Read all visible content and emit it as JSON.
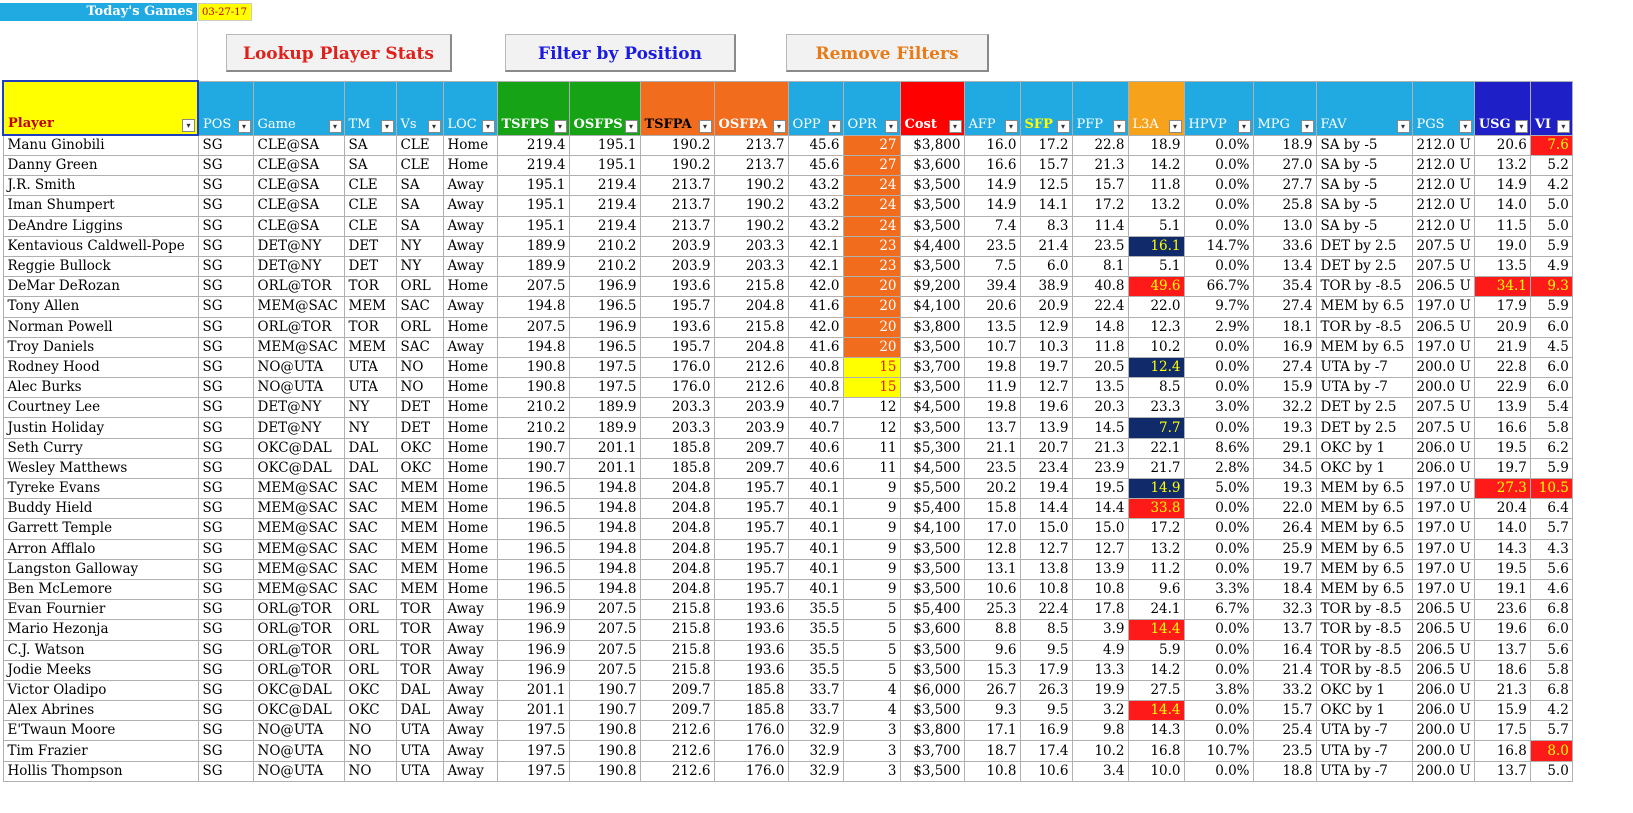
{
  "header": {
    "todays_games_label": "Today's Games",
    "date": "03-27-17"
  },
  "buttons": {
    "lookup": "Lookup Player Stats",
    "filter": "Filter by Position",
    "remove": "Remove Filters"
  },
  "columns": [
    "Player",
    "POS",
    "Game",
    "TM",
    "Vs",
    "LOC",
    "TSFPS",
    "OSFPS",
    "TSFPA",
    "OSFPA",
    "OPP",
    "OPR",
    "Cost",
    "AFP",
    "SFP",
    "PFP",
    "L3A",
    "HPVP",
    "MPG",
    "FAV",
    "PGS",
    "USG",
    "VI"
  ],
  "colors": {
    "header_blue": "#21a9e1",
    "header_green": "#16a316",
    "header_orange": "#f26c1d",
    "header_red": "#ff0000",
    "highlight_orange": "#f26c1d",
    "highlight_yellow": "#ffff00",
    "highlight_red": "#ff1a1a",
    "highlight_navy": "#102a6a"
  },
  "rows": [
    {
      "player": "Manu Ginobili",
      "pos": "SG",
      "game": "CLE@SA",
      "tm": "SA",
      "vs": "CLE",
      "loc": "Home",
      "tsfps": "219.4",
      "osfps": "195.1",
      "tsfpa": "190.2",
      "osfpa": "213.7",
      "opp": "45.6",
      "opr": "27",
      "cost": "$3,800",
      "afp": "16.0",
      "sfp": "17.2",
      "pfp": "22.8",
      "l3a": "18.9",
      "hpvp": "0.0%",
      "mpg": "18.9",
      "fav": "SA by -5",
      "pgs": "212.0 U",
      "usg": "20.6",
      "vi": "7.6"
    },
    {
      "player": "Danny Green",
      "pos": "SG",
      "game": "CLE@SA",
      "tm": "SA",
      "vs": "CLE",
      "loc": "Home",
      "tsfps": "219.4",
      "osfps": "195.1",
      "tsfpa": "190.2",
      "osfpa": "213.7",
      "opp": "45.6",
      "opr": "27",
      "cost": "$3,600",
      "afp": "16.6",
      "sfp": "15.7",
      "pfp": "21.3",
      "l3a": "14.2",
      "hpvp": "0.0%",
      "mpg": "27.0",
      "fav": "SA by -5",
      "pgs": "212.0 U",
      "usg": "13.2",
      "vi": "5.2"
    },
    {
      "player": "J.R. Smith",
      "pos": "SG",
      "game": "CLE@SA",
      "tm": "CLE",
      "vs": "SA",
      "loc": "Away",
      "tsfps": "195.1",
      "osfps": "219.4",
      "tsfpa": "213.7",
      "osfpa": "190.2",
      "opp": "43.2",
      "opr": "24",
      "cost": "$3,500",
      "afp": "14.9",
      "sfp": "12.5",
      "pfp": "15.7",
      "l3a": "11.8",
      "hpvp": "0.0%",
      "mpg": "27.7",
      "fav": "SA by -5",
      "pgs": "212.0 U",
      "usg": "14.9",
      "vi": "4.2"
    },
    {
      "player": "Iman Shumpert",
      "pos": "SG",
      "game": "CLE@SA",
      "tm": "CLE",
      "vs": "SA",
      "loc": "Away",
      "tsfps": "195.1",
      "osfps": "219.4",
      "tsfpa": "213.7",
      "osfpa": "190.2",
      "opp": "43.2",
      "opr": "24",
      "cost": "$3,500",
      "afp": "14.9",
      "sfp": "14.1",
      "pfp": "17.2",
      "l3a": "13.2",
      "hpvp": "0.0%",
      "mpg": "25.8",
      "fav": "SA by -5",
      "pgs": "212.0 U",
      "usg": "14.0",
      "vi": "5.0"
    },
    {
      "player": "DeAndre Liggins",
      "pos": "SG",
      "game": "CLE@SA",
      "tm": "CLE",
      "vs": "SA",
      "loc": "Away",
      "tsfps": "195.1",
      "osfps": "219.4",
      "tsfpa": "213.7",
      "osfpa": "190.2",
      "opp": "43.2",
      "opr": "24",
      "cost": "$3,500",
      "afp": "7.4",
      "sfp": "8.3",
      "pfp": "11.4",
      "l3a": "5.1",
      "hpvp": "0.0%",
      "mpg": "13.0",
      "fav": "SA by -5",
      "pgs": "212.0 U",
      "usg": "11.5",
      "vi": "5.0"
    },
    {
      "player": "Kentavious Caldwell-Pope",
      "pos": "SG",
      "game": "DET@NY",
      "tm": "DET",
      "vs": "NY",
      "loc": "Away",
      "tsfps": "189.9",
      "osfps": "210.2",
      "tsfpa": "203.9",
      "osfpa": "203.3",
      "opp": "42.1",
      "opr": "23",
      "cost": "$4,400",
      "afp": "23.5",
      "sfp": "21.4",
      "pfp": "23.5",
      "l3a": "16.1",
      "hpvp": "14.7%",
      "mpg": "33.6",
      "fav": "DET by 2.5",
      "pgs": "207.5 U",
      "usg": "19.0",
      "vi": "5.9"
    },
    {
      "player": "Reggie Bullock",
      "pos": "SG",
      "game": "DET@NY",
      "tm": "DET",
      "vs": "NY",
      "loc": "Away",
      "tsfps": "189.9",
      "osfps": "210.2",
      "tsfpa": "203.9",
      "osfpa": "203.3",
      "opp": "42.1",
      "opr": "23",
      "cost": "$3,500",
      "afp": "7.5",
      "sfp": "6.0",
      "pfp": "8.1",
      "l3a": "5.1",
      "hpvp": "0.0%",
      "mpg": "13.4",
      "fav": "DET by 2.5",
      "pgs": "207.5 U",
      "usg": "13.5",
      "vi": "4.9"
    },
    {
      "player": "DeMar DeRozan",
      "pos": "SG",
      "game": "ORL@TOR",
      "tm": "TOR",
      "vs": "ORL",
      "loc": "Home",
      "tsfps": "207.5",
      "osfps": "196.9",
      "tsfpa": "193.6",
      "osfpa": "215.8",
      "opp": "42.0",
      "opr": "20",
      "cost": "$9,200",
      "afp": "39.4",
      "sfp": "38.9",
      "pfp": "40.8",
      "l3a": "49.6",
      "hpvp": "66.7%",
      "mpg": "35.4",
      "fav": "TOR by -8.5",
      "pgs": "206.5 U",
      "usg": "34.1",
      "vi": "9.3"
    },
    {
      "player": "Tony Allen",
      "pos": "SG",
      "game": "MEM@SAC",
      "tm": "MEM",
      "vs": "SAC",
      "loc": "Away",
      "tsfps": "194.8",
      "osfps": "196.5",
      "tsfpa": "195.7",
      "osfpa": "204.8",
      "opp": "41.6",
      "opr": "20",
      "cost": "$4,100",
      "afp": "20.6",
      "sfp": "20.9",
      "pfp": "22.4",
      "l3a": "22.0",
      "hpvp": "9.7%",
      "mpg": "27.4",
      "fav": "MEM by 6.5",
      "pgs": "197.0 U",
      "usg": "17.9",
      "vi": "5.9"
    },
    {
      "player": "Norman Powell",
      "pos": "SG",
      "game": "ORL@TOR",
      "tm": "TOR",
      "vs": "ORL",
      "loc": "Home",
      "tsfps": "207.5",
      "osfps": "196.9",
      "tsfpa": "193.6",
      "osfpa": "215.8",
      "opp": "42.0",
      "opr": "20",
      "cost": "$3,800",
      "afp": "13.5",
      "sfp": "12.9",
      "pfp": "14.8",
      "l3a": "12.3",
      "hpvp": "2.9%",
      "mpg": "18.1",
      "fav": "TOR by -8.5",
      "pgs": "206.5 U",
      "usg": "20.9",
      "vi": "6.0"
    },
    {
      "player": "Troy Daniels",
      "pos": "SG",
      "game": "MEM@SAC",
      "tm": "MEM",
      "vs": "SAC",
      "loc": "Away",
      "tsfps": "194.8",
      "osfps": "196.5",
      "tsfpa": "195.7",
      "osfpa": "204.8",
      "opp": "41.6",
      "opr": "20",
      "cost": "$3,500",
      "afp": "10.7",
      "sfp": "10.3",
      "pfp": "11.8",
      "l3a": "10.2",
      "hpvp": "0.0%",
      "mpg": "16.9",
      "fav": "MEM by 6.5",
      "pgs": "197.0 U",
      "usg": "21.9",
      "vi": "4.5"
    },
    {
      "player": "Rodney Hood",
      "pos": "SG",
      "game": "NO@UTA",
      "tm": "UTA",
      "vs": "NO",
      "loc": "Home",
      "tsfps": "190.8",
      "osfps": "197.5",
      "tsfpa": "176.0",
      "osfpa": "212.6",
      "opp": "40.8",
      "opr": "15",
      "cost": "$3,700",
      "afp": "19.8",
      "sfp": "19.7",
      "pfp": "20.5",
      "l3a": "12.4",
      "hpvp": "0.0%",
      "mpg": "27.4",
      "fav": "UTA by -7",
      "pgs": "200.0 U",
      "usg": "22.8",
      "vi": "6.0"
    },
    {
      "player": "Alec Burks",
      "pos": "SG",
      "game": "NO@UTA",
      "tm": "UTA",
      "vs": "NO",
      "loc": "Home",
      "tsfps": "190.8",
      "osfps": "197.5",
      "tsfpa": "176.0",
      "osfpa": "212.6",
      "opp": "40.8",
      "opr": "15",
      "cost": "$3,500",
      "afp": "11.9",
      "sfp": "12.7",
      "pfp": "13.5",
      "l3a": "8.5",
      "hpvp": "0.0%",
      "mpg": "15.9",
      "fav": "UTA by -7",
      "pgs": "200.0 U",
      "usg": "22.9",
      "vi": "6.0"
    },
    {
      "player": "Courtney Lee",
      "pos": "SG",
      "game": "DET@NY",
      "tm": "NY",
      "vs": "DET",
      "loc": "Home",
      "tsfps": "210.2",
      "osfps": "189.9",
      "tsfpa": "203.3",
      "osfpa": "203.9",
      "opp": "40.7",
      "opr": "12",
      "cost": "$4,500",
      "afp": "19.8",
      "sfp": "19.6",
      "pfp": "20.3",
      "l3a": "23.3",
      "hpvp": "3.0%",
      "mpg": "32.2",
      "fav": "DET by 2.5",
      "pgs": "207.5 U",
      "usg": "13.9",
      "vi": "5.4"
    },
    {
      "player": "Justin Holiday",
      "pos": "SG",
      "game": "DET@NY",
      "tm": "NY",
      "vs": "DET",
      "loc": "Home",
      "tsfps": "210.2",
      "osfps": "189.9",
      "tsfpa": "203.3",
      "osfpa": "203.9",
      "opp": "40.7",
      "opr": "12",
      "cost": "$3,500",
      "afp": "13.7",
      "sfp": "13.9",
      "pfp": "14.5",
      "l3a": "7.7",
      "hpvp": "0.0%",
      "mpg": "19.3",
      "fav": "DET by 2.5",
      "pgs": "207.5 U",
      "usg": "16.6",
      "vi": "5.8"
    },
    {
      "player": "Seth Curry",
      "pos": "SG",
      "game": "OKC@DAL",
      "tm": "DAL",
      "vs": "OKC",
      "loc": "Home",
      "tsfps": "190.7",
      "osfps": "201.1",
      "tsfpa": "185.8",
      "osfpa": "209.7",
      "opp": "40.6",
      "opr": "11",
      "cost": "$5,300",
      "afp": "21.1",
      "sfp": "20.7",
      "pfp": "21.3",
      "l3a": "22.1",
      "hpvp": "8.6%",
      "mpg": "29.1",
      "fav": "OKC by 1",
      "pgs": "206.0 U",
      "usg": "19.5",
      "vi": "6.2"
    },
    {
      "player": "Wesley Matthews",
      "pos": "SG",
      "game": "OKC@DAL",
      "tm": "DAL",
      "vs": "OKC",
      "loc": "Home",
      "tsfps": "190.7",
      "osfps": "201.1",
      "tsfpa": "185.8",
      "osfpa": "209.7",
      "opp": "40.6",
      "opr": "11",
      "cost": "$4,500",
      "afp": "23.5",
      "sfp": "23.4",
      "pfp": "23.9",
      "l3a": "21.7",
      "hpvp": "2.8%",
      "mpg": "34.5",
      "fav": "OKC by 1",
      "pgs": "206.0 U",
      "usg": "19.7",
      "vi": "5.9"
    },
    {
      "player": "Tyreke Evans",
      "pos": "SG",
      "game": "MEM@SAC",
      "tm": "SAC",
      "vs": "MEM",
      "loc": "Home",
      "tsfps": "196.5",
      "osfps": "194.8",
      "tsfpa": "204.8",
      "osfpa": "195.7",
      "opp": "40.1",
      "opr": "9",
      "cost": "$5,500",
      "afp": "20.2",
      "sfp": "19.4",
      "pfp": "19.5",
      "l3a": "14.9",
      "hpvp": "5.0%",
      "mpg": "19.3",
      "fav": "MEM by 6.5",
      "pgs": "197.0 U",
      "usg": "27.3",
      "vi": "10.5"
    },
    {
      "player": "Buddy Hield",
      "pos": "SG",
      "game": "MEM@SAC",
      "tm": "SAC",
      "vs": "MEM",
      "loc": "Home",
      "tsfps": "196.5",
      "osfps": "194.8",
      "tsfpa": "204.8",
      "osfpa": "195.7",
      "opp": "40.1",
      "opr": "9",
      "cost": "$5,400",
      "afp": "15.8",
      "sfp": "14.4",
      "pfp": "14.4",
      "l3a": "33.8",
      "hpvp": "0.0%",
      "mpg": "22.0",
      "fav": "MEM by 6.5",
      "pgs": "197.0 U",
      "usg": "20.4",
      "vi": "6.4"
    },
    {
      "player": "Garrett Temple",
      "pos": "SG",
      "game": "MEM@SAC",
      "tm": "SAC",
      "vs": "MEM",
      "loc": "Home",
      "tsfps": "196.5",
      "osfps": "194.8",
      "tsfpa": "204.8",
      "osfpa": "195.7",
      "opp": "40.1",
      "opr": "9",
      "cost": "$4,100",
      "afp": "17.0",
      "sfp": "15.0",
      "pfp": "15.0",
      "l3a": "17.2",
      "hpvp": "0.0%",
      "mpg": "26.4",
      "fav": "MEM by 6.5",
      "pgs": "197.0 U",
      "usg": "14.0",
      "vi": "5.7"
    },
    {
      "player": "Arron Afflalo",
      "pos": "SG",
      "game": "MEM@SAC",
      "tm": "SAC",
      "vs": "MEM",
      "loc": "Home",
      "tsfps": "196.5",
      "osfps": "194.8",
      "tsfpa": "204.8",
      "osfpa": "195.7",
      "opp": "40.1",
      "opr": "9",
      "cost": "$3,500",
      "afp": "12.8",
      "sfp": "12.7",
      "pfp": "12.7",
      "l3a": "13.2",
      "hpvp": "0.0%",
      "mpg": "25.9",
      "fav": "MEM by 6.5",
      "pgs": "197.0 U",
      "usg": "14.3",
      "vi": "4.3"
    },
    {
      "player": "Langston Galloway",
      "pos": "SG",
      "game": "MEM@SAC",
      "tm": "SAC",
      "vs": "MEM",
      "loc": "Home",
      "tsfps": "196.5",
      "osfps": "194.8",
      "tsfpa": "204.8",
      "osfpa": "195.7",
      "opp": "40.1",
      "opr": "9",
      "cost": "$3,500",
      "afp": "13.1",
      "sfp": "13.8",
      "pfp": "13.9",
      "l3a": "11.2",
      "hpvp": "0.0%",
      "mpg": "19.7",
      "fav": "MEM by 6.5",
      "pgs": "197.0 U",
      "usg": "19.5",
      "vi": "5.6"
    },
    {
      "player": "Ben McLemore",
      "pos": "SG",
      "game": "MEM@SAC",
      "tm": "SAC",
      "vs": "MEM",
      "loc": "Home",
      "tsfps": "196.5",
      "osfps": "194.8",
      "tsfpa": "204.8",
      "osfpa": "195.7",
      "opp": "40.1",
      "opr": "9",
      "cost": "$3,500",
      "afp": "10.6",
      "sfp": "10.8",
      "pfp": "10.8",
      "l3a": "9.6",
      "hpvp": "3.3%",
      "mpg": "18.4",
      "fav": "MEM by 6.5",
      "pgs": "197.0 U",
      "usg": "19.1",
      "vi": "4.6"
    },
    {
      "player": "Evan Fournier",
      "pos": "SG",
      "game": "ORL@TOR",
      "tm": "ORL",
      "vs": "TOR",
      "loc": "Away",
      "tsfps": "196.9",
      "osfps": "207.5",
      "tsfpa": "215.8",
      "osfpa": "193.6",
      "opp": "35.5",
      "opr": "5",
      "cost": "$5,400",
      "afp": "25.3",
      "sfp": "22.4",
      "pfp": "17.8",
      "l3a": "24.1",
      "hpvp": "6.7%",
      "mpg": "32.3",
      "fav": "TOR by -8.5",
      "pgs": "206.5 U",
      "usg": "23.6",
      "vi": "6.8"
    },
    {
      "player": "Mario Hezonja",
      "pos": "SG",
      "game": "ORL@TOR",
      "tm": "ORL",
      "vs": "TOR",
      "loc": "Away",
      "tsfps": "196.9",
      "osfps": "207.5",
      "tsfpa": "215.8",
      "osfpa": "193.6",
      "opp": "35.5",
      "opr": "5",
      "cost": "$3,600",
      "afp": "8.8",
      "sfp": "8.5",
      "pfp": "3.9",
      "l3a": "14.4",
      "hpvp": "0.0%",
      "mpg": "13.7",
      "fav": "TOR by -8.5",
      "pgs": "206.5 U",
      "usg": "19.6",
      "vi": "6.0"
    },
    {
      "player": "C.J. Watson",
      "pos": "SG",
      "game": "ORL@TOR",
      "tm": "ORL",
      "vs": "TOR",
      "loc": "Away",
      "tsfps": "196.9",
      "osfps": "207.5",
      "tsfpa": "215.8",
      "osfpa": "193.6",
      "opp": "35.5",
      "opr": "5",
      "cost": "$3,500",
      "afp": "9.6",
      "sfp": "9.5",
      "pfp": "4.9",
      "l3a": "5.9",
      "hpvp": "0.0%",
      "mpg": "16.4",
      "fav": "TOR by -8.5",
      "pgs": "206.5 U",
      "usg": "13.7",
      "vi": "5.6"
    },
    {
      "player": "Jodie Meeks",
      "pos": "SG",
      "game": "ORL@TOR",
      "tm": "ORL",
      "vs": "TOR",
      "loc": "Away",
      "tsfps": "196.9",
      "osfps": "207.5",
      "tsfpa": "215.8",
      "osfpa": "193.6",
      "opp": "35.5",
      "opr": "5",
      "cost": "$3,500",
      "afp": "15.3",
      "sfp": "17.9",
      "pfp": "13.3",
      "l3a": "14.2",
      "hpvp": "0.0%",
      "mpg": "21.4",
      "fav": "TOR by -8.5",
      "pgs": "206.5 U",
      "usg": "18.6",
      "vi": "5.8"
    },
    {
      "player": "Victor Oladipo",
      "pos": "SG",
      "game": "OKC@DAL",
      "tm": "OKC",
      "vs": "DAL",
      "loc": "Away",
      "tsfps": "201.1",
      "osfps": "190.7",
      "tsfpa": "209.7",
      "osfpa": "185.8",
      "opp": "33.7",
      "opr": "4",
      "cost": "$6,000",
      "afp": "26.7",
      "sfp": "26.3",
      "pfp": "19.9",
      "l3a": "27.5",
      "hpvp": "3.8%",
      "mpg": "33.2",
      "fav": "OKC by 1",
      "pgs": "206.0 U",
      "usg": "21.3",
      "vi": "6.8"
    },
    {
      "player": "Alex Abrines",
      "pos": "SG",
      "game": "OKC@DAL",
      "tm": "OKC",
      "vs": "DAL",
      "loc": "Away",
      "tsfps": "201.1",
      "osfps": "190.7",
      "tsfpa": "209.7",
      "osfpa": "185.8",
      "opp": "33.7",
      "opr": "4",
      "cost": "$3,500",
      "afp": "9.3",
      "sfp": "9.5",
      "pfp": "3.2",
      "l3a": "14.4",
      "hpvp": "0.0%",
      "mpg": "15.7",
      "fav": "OKC by 1",
      "pgs": "206.0 U",
      "usg": "15.9",
      "vi": "4.2"
    },
    {
      "player": "E'Twaun Moore",
      "pos": "SG",
      "game": "NO@UTA",
      "tm": "NO",
      "vs": "UTA",
      "loc": "Away",
      "tsfps": "197.5",
      "osfps": "190.8",
      "tsfpa": "212.6",
      "osfpa": "176.0",
      "opp": "32.9",
      "opr": "3",
      "cost": "$3,800",
      "afp": "17.1",
      "sfp": "16.9",
      "pfp": "9.8",
      "l3a": "14.3",
      "hpvp": "0.0%",
      "mpg": "25.4",
      "fav": "UTA by -7",
      "pgs": "200.0 U",
      "usg": "17.5",
      "vi": "5.7"
    },
    {
      "player": "Tim Frazier",
      "pos": "SG",
      "game": "NO@UTA",
      "tm": "NO",
      "vs": "UTA",
      "loc": "Away",
      "tsfps": "197.5",
      "osfps": "190.8",
      "tsfpa": "212.6",
      "osfpa": "176.0",
      "opp": "32.9",
      "opr": "3",
      "cost": "$3,700",
      "afp": "18.7",
      "sfp": "17.4",
      "pfp": "10.2",
      "l3a": "16.8",
      "hpvp": "10.7%",
      "mpg": "23.5",
      "fav": "UTA by -7",
      "pgs": "200.0 U",
      "usg": "16.8",
      "vi": "8.0"
    },
    {
      "player": "Hollis Thompson",
      "pos": "SG",
      "game": "NO@UTA",
      "tm": "NO",
      "vs": "UTA",
      "loc": "Away",
      "tsfps": "197.5",
      "osfps": "190.8",
      "tsfpa": "212.6",
      "osfpa": "176.0",
      "opp": "32.9",
      "opr": "3",
      "cost": "$3,500",
      "afp": "10.8",
      "sfp": "10.6",
      "pfp": "3.4",
      "l3a": "10.0",
      "hpvp": "0.0%",
      "mpg": "18.8",
      "fav": "UTA by -7",
      "pgs": "200.0 U",
      "usg": "13.7",
      "vi": "5.0"
    }
  ]
}
